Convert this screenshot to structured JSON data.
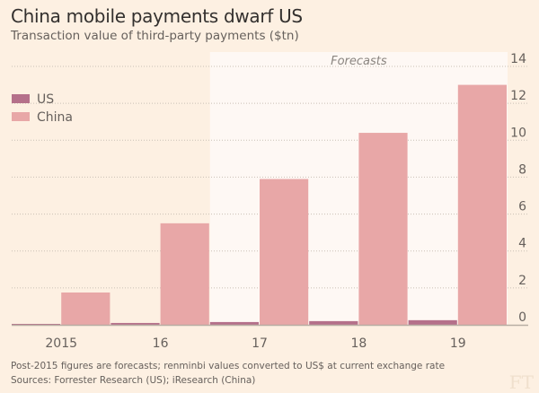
{
  "header": {
    "title": "China mobile payments dwarf US",
    "subtitle": "Transaction value of third-party payments ($tn)"
  },
  "footer": {
    "note": "Post-2015 figures are forecasts; renminbi values converted to US$ at current exchange rate",
    "sources": "Sources: Forrester Research (US); iResearch (China)",
    "logo": "FT"
  },
  "colors": {
    "us": "#b5708a",
    "china": "#e8a7a7",
    "background": "#fdf0e2",
    "forecast_band": "#fef8f4"
  },
  "chart_data": {
    "type": "bar",
    "title": "China mobile payments dwarf US",
    "subtitle": "Transaction value of third-party payments ($tn)",
    "categories": [
      "2015",
      "16",
      "17",
      "18",
      "19"
    ],
    "series": [
      {
        "name": "US",
        "values": [
          0.05,
          0.1,
          0.15,
          0.2,
          0.25
        ]
      },
      {
        "name": "China",
        "values": [
          1.75,
          5.5,
          7.9,
          10.4,
          13.0
        ]
      }
    ],
    "ylim": [
      0,
      14
    ],
    "yticks": [
      0,
      2,
      4,
      6,
      8,
      10,
      12,
      14
    ],
    "ytick_labels": [
      "0",
      "2",
      "4",
      "6",
      "8",
      "10",
      "12",
      "14"
    ],
    "y_axis_position": "right",
    "grid": true,
    "legend": [
      "US",
      "China"
    ],
    "legend_position": "top-left",
    "annotation": "Forecasts",
    "forecast_start_category": "17",
    "xlabel": "",
    "ylabel": ""
  }
}
